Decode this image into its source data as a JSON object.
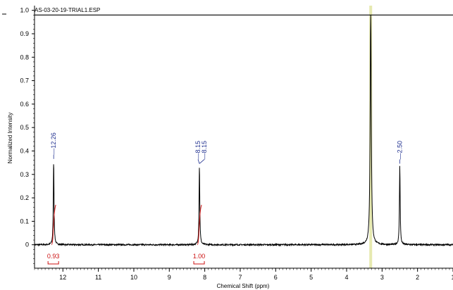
{
  "chart_data": {
    "type": "line",
    "title": "AS-03-20-19-TRIAL1.ESP",
    "xlabel": "Chemical Shift (ppm)",
    "ylabel": "Normalized Intensity",
    "xlim": [
      12.8,
      1.0
    ],
    "ylim": [
      -0.1,
      1.02
    ],
    "x_reversed": true,
    "grid": false,
    "x_ticks": [
      12,
      11,
      10,
      9,
      8,
      7,
      6,
      5,
      4,
      3,
      2,
      1
    ],
    "y_ticks": [
      0,
      0.1,
      0.2,
      0.3,
      0.4,
      0.5,
      0.6,
      0.7,
      0.8,
      0.9,
      1.0
    ],
    "y_tick_labels": [
      "0",
      "0.1",
      "0.2",
      "0.3",
      "0.4",
      "0.5",
      "0.6",
      "0.7",
      "0.8",
      "0.9",
      "1.0"
    ],
    "series": [
      {
        "peaks": [
          {
            "x": 12.26,
            "height": 0.36,
            "width": 0.012
          },
          {
            "x": 8.15,
            "height": 0.34,
            "width": 0.012
          },
          {
            "x": 3.32,
            "height": 1.0,
            "width": 0.018
          },
          {
            "x": 2.5,
            "height": 0.34,
            "width": 0.012
          }
        ]
      }
    ],
    "peak_labels": [
      {
        "text": "12.26",
        "x": 12.26,
        "y": 0.36
      },
      {
        "text": "8.15",
        "x": 8.15,
        "y": 0.34,
        "paired": true
      },
      {
        "text": "8.15",
        "x": 8.15,
        "y": 0.34,
        "paired": true
      },
      {
        "text": "2.50",
        "x": 2.5,
        "y": 0.34
      }
    ],
    "integrals": [
      {
        "label": "0.93",
        "from": 12.32,
        "to": 12.2,
        "curve_top": 0.17
      },
      {
        "label": "1.00",
        "from": 8.21,
        "to": 8.09,
        "curve_top": 0.17
      }
    ],
    "highlight_band": {
      "from": 3.36,
      "to": 3.28
    },
    "colors": {
      "spectrum": "#000000",
      "peak_label": "#1f2f8f",
      "integral": "#cc1111",
      "highlight": "#e6e9b0"
    }
  }
}
